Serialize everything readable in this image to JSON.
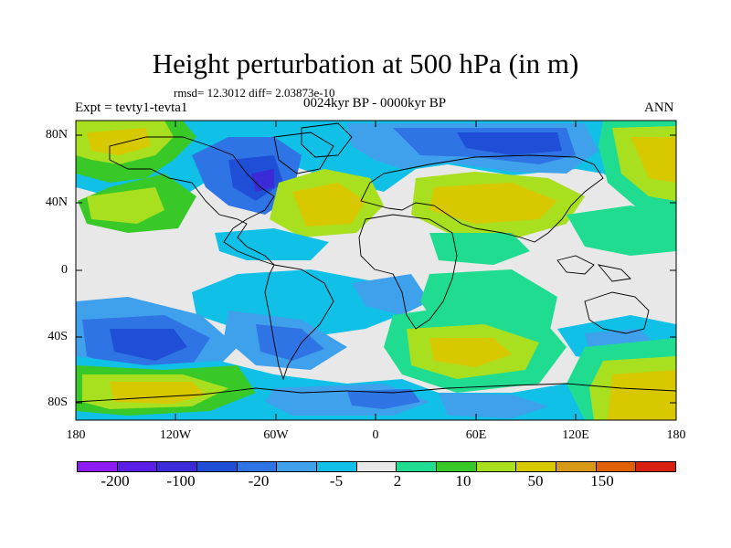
{
  "title": "Height perturbation at 500 hPa (in m)",
  "stats": "rmsd= 12.3012 diff= 2.03873e-10",
  "expt": "Expt = tevty1-tevta1",
  "period": "0024kyr BP - 0000kyr BP",
  "season": "ANN",
  "lat_ticks": [
    "80N",
    "40N",
    "0",
    "40S",
    "80S"
  ],
  "lon_ticks": [
    "180",
    "120W",
    "60W",
    "0",
    "60E",
    "120E",
    "180"
  ],
  "colorbar": {
    "colors": [
      "#8c1cf0",
      "#5a1ee6",
      "#3a2ad8",
      "#1f4fd6",
      "#2f74e4",
      "#3fa0ec",
      "#10c0e6",
      "#e8e8e8",
      "#20dc90",
      "#38c828",
      "#a8e020",
      "#d8c800",
      "#d89818",
      "#e06008",
      "#d82010"
    ],
    "labels": [
      "-200",
      "-100",
      "-20",
      "-5",
      "2",
      "10",
      "50",
      "150"
    ]
  }
}
